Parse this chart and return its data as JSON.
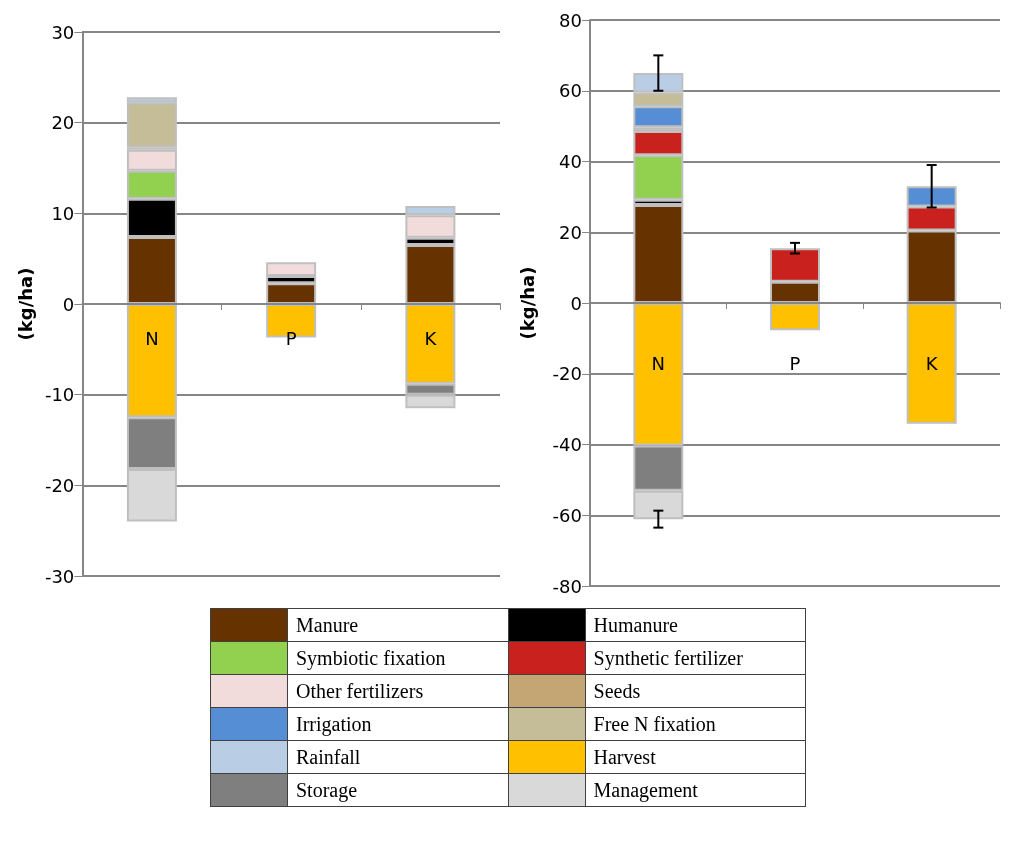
{
  "chart_data": [
    {
      "type": "bar",
      "stacked": true,
      "categories": [
        "N",
        "P",
        "K"
      ],
      "ylabel": "(kg/ha)",
      "ylim": [
        -30,
        30
      ],
      "yticks": [
        -30,
        -20,
        -10,
        0,
        10,
        20,
        30
      ],
      "grid": "y",
      "legend": "bottom",
      "series": [
        {
          "name": "Manure",
          "color": "#663300",
          "values": [
            7.4,
            2.3,
            6.5
          ]
        },
        {
          "name": "Humanure",
          "color": "#000000",
          "values": [
            4.2,
            0.8,
            0.8
          ]
        },
        {
          "name": "Symbiotic fixation",
          "color": "#92d050",
          "values": [
            3.1,
            null,
            null
          ]
        },
        {
          "name": "Synthetic fertilizer",
          "color": "#c9211e",
          "values": [
            null,
            null,
            null
          ]
        },
        {
          "name": "Other fertilizers",
          "color": "#f2dcdb",
          "values": [
            2.3,
            1.5,
            2.5
          ]
        },
        {
          "name": "Seeds",
          "color": "#c4a574",
          "values": [
            0.3,
            null,
            null
          ]
        },
        {
          "name": "Irrigation",
          "color": "#558ed5",
          "values": [
            null,
            null,
            null
          ]
        },
        {
          "name": "Free N fixation",
          "color": "#c4bd97",
          "values": [
            4.9,
            null,
            null
          ]
        },
        {
          "name": "Rainfall",
          "color": "#b9cde5",
          "values": [
            0.6,
            null,
            1.0
          ]
        },
        {
          "name": "Harvest",
          "color": "#ffc000",
          "values": [
            -12.5,
            -3.7,
            -8.8
          ]
        },
        {
          "name": "Storage",
          "color": "#7f7f7f",
          "values": [
            -5.7,
            null,
            -1.2
          ]
        },
        {
          "name": "Management",
          "color": "#d9d9d9",
          "values": [
            -5.8,
            null,
            -1.5
          ]
        }
      ]
    },
    {
      "type": "bar",
      "stacked": true,
      "categories": [
        "N",
        "P",
        "K"
      ],
      "ylabel": "(kg/ha)",
      "ylim": [
        -80,
        80
      ],
      "yticks": [
        -80,
        -60,
        -40,
        -20,
        0,
        20,
        40,
        60,
        80
      ],
      "grid": "y",
      "series": [
        {
          "color": "#663300",
          "values": [
            27.7,
            6.0,
            20.5
          ]
        },
        {
          "color": "#000000",
          "values": [
            1.5,
            null,
            null
          ]
        },
        {
          "color": "#92d050",
          "values": [
            12.6,
            null,
            null
          ]
        },
        {
          "color": "#c9211e",
          "values": [
            6.8,
            9.5,
            6.8
          ],
          "errors": [
            null,
            1.5,
            null
          ]
        },
        {
          "color": "#f2dcdb",
          "values": [
            null,
            null,
            null
          ]
        },
        {
          "color": "#c4a574",
          "values": [
            1.1,
            null,
            null
          ]
        },
        {
          "color": "#558ed5",
          "values": [
            5.9,
            null,
            5.7
          ],
          "errors": [
            null,
            null,
            6
          ]
        },
        {
          "color": "#c4bd97",
          "values": [
            3.9,
            null,
            null
          ]
        },
        {
          "color": "#b9cde5",
          "values": [
            5.5,
            null,
            null
          ],
          "errors": [
            5,
            null,
            null
          ]
        },
        {
          "color": "#ffc000",
          "values": [
            -40.3,
            -7.7,
            -34.1
          ]
        },
        {
          "color": "#7f7f7f",
          "values": [
            -12.8,
            null,
            null
          ]
        },
        {
          "color": "#d9d9d9",
          "values": [
            -8.0,
            null,
            null
          ],
          "errors": [
            2.4,
            null,
            null
          ]
        }
      ]
    }
  ]
}
